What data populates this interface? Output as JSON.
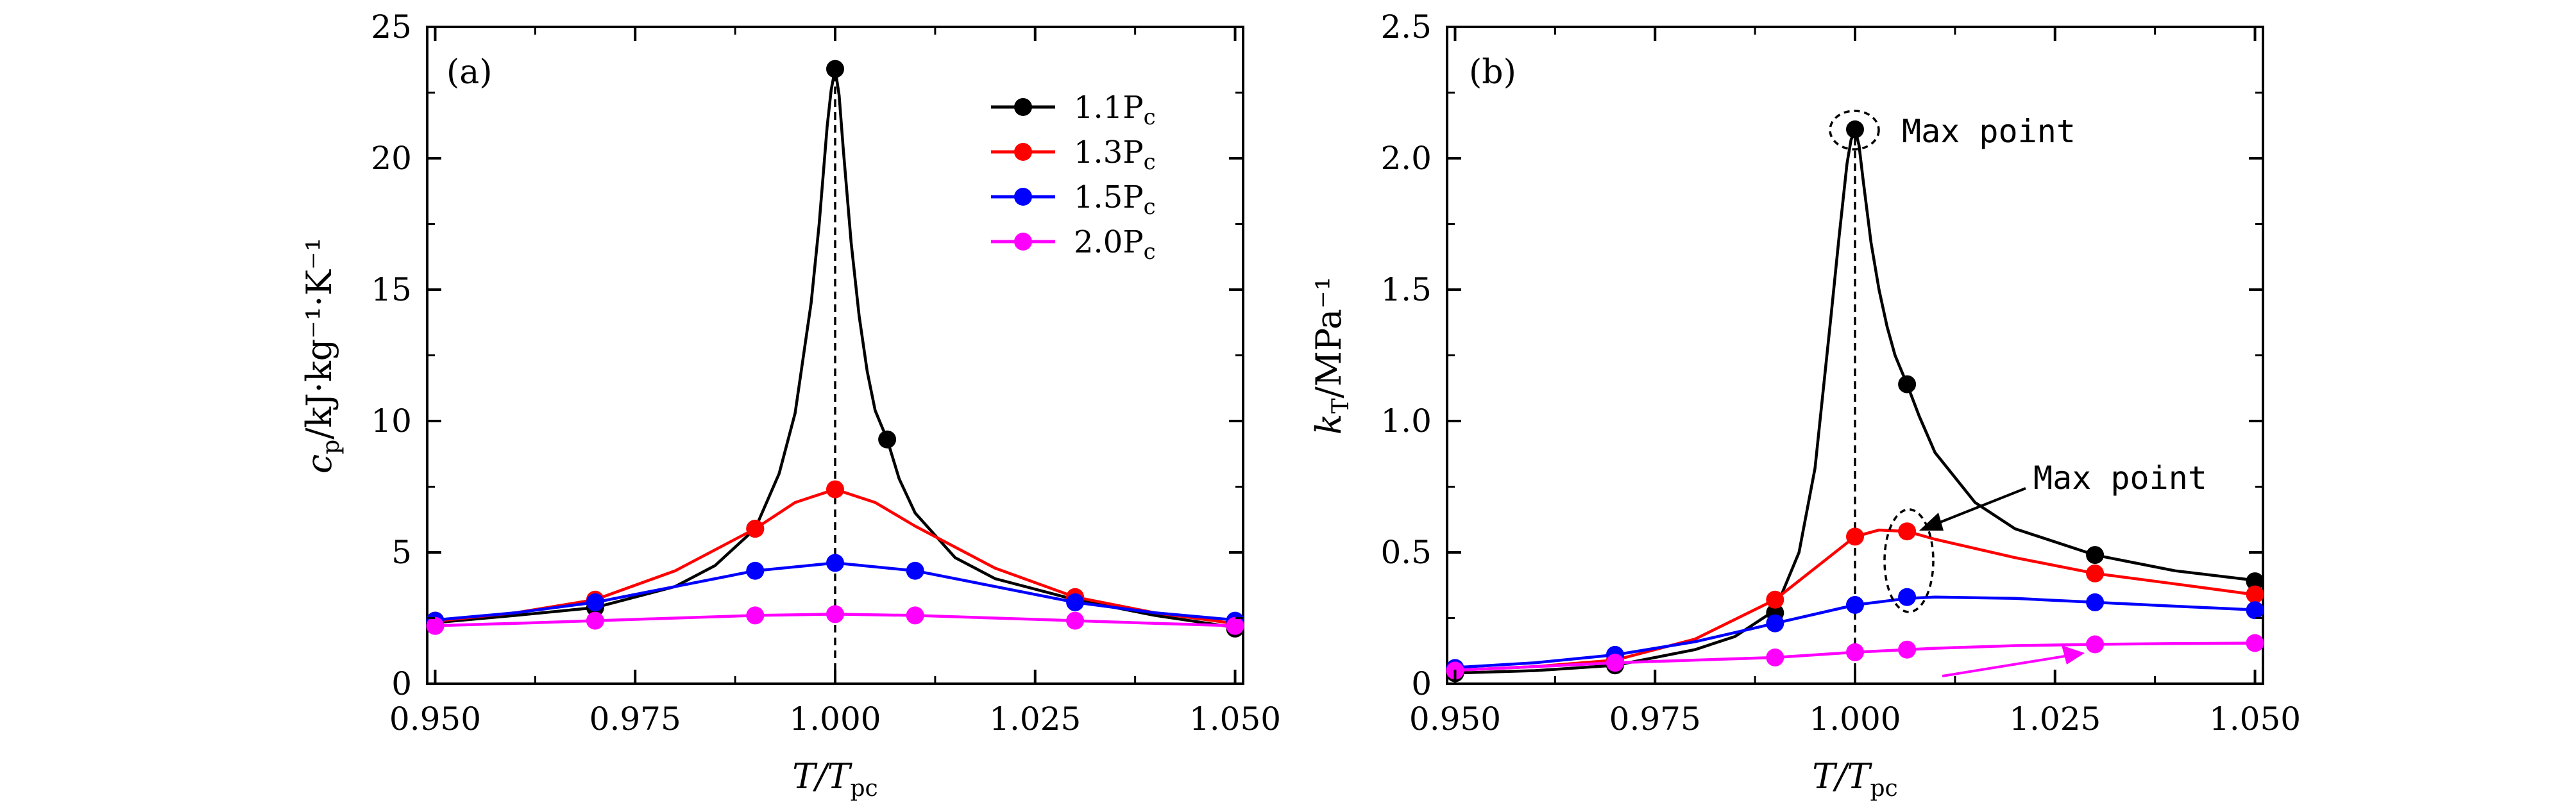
{
  "colors": {
    "black": "#000000",
    "red": "#ff0000",
    "blue": "#0000ff",
    "magenta": "#ff00ff"
  },
  "chart_data": [
    {
      "type": "line",
      "panel_label": "(a)",
      "xlabel": "T/T",
      "xlabel_sub": "pc",
      "ylabel": "c",
      "ylabel_sub": "p",
      "ylabel_unit": "/kJ·kg⁻¹·K⁻¹",
      "xlim": [
        0.949,
        1.051
      ],
      "ylim": [
        0,
        25
      ],
      "xticks": [
        0.95,
        0.975,
        1.0,
        1.025,
        1.05
      ],
      "xtick_labels": [
        "0.950",
        "0.975",
        "1.000",
        "1.025",
        "1.050"
      ],
      "yticks": [
        0,
        5,
        10,
        15,
        20,
        25
      ],
      "ytick_labels": [
        "0",
        "5",
        "10",
        "15",
        "20",
        "25"
      ],
      "grid": false,
      "legend_position": "top-right",
      "vline_x": 1.0,
      "series": [
        {
          "name": "1.1P",
          "name_sub": "c",
          "color": "#000000",
          "markers_x": [
            0.95,
            0.97,
            0.99,
            1.0,
            1.0065,
            1.03,
            1.05
          ],
          "markers_y": [
            2.4,
            2.9,
            5.9,
            23.4,
            9.3,
            3.2,
            2.1
          ],
          "curve_x": [
            0.949,
            0.96,
            0.97,
            0.98,
            0.985,
            0.99,
            0.993,
            0.995,
            0.997,
            0.998,
            0.999,
            0.9995,
            1.0,
            1.0005,
            1.001,
            1.002,
            1.003,
            1.004,
            1.005,
            1.0065,
            1.008,
            1.01,
            1.015,
            1.02,
            1.03,
            1.04,
            1.051
          ],
          "curve_y": [
            2.3,
            2.6,
            2.9,
            3.7,
            4.5,
            5.9,
            8.0,
            10.3,
            14.5,
            17.5,
            21.2,
            22.6,
            23.4,
            22.4,
            20.4,
            16.8,
            14.0,
            11.9,
            10.4,
            9.3,
            7.8,
            6.5,
            4.8,
            4.0,
            3.2,
            2.6,
            2.1
          ]
        },
        {
          "name": "1.3P",
          "name_sub": "c",
          "color": "#ff0000",
          "markers_x": [
            0.95,
            0.97,
            0.99,
            1.0,
            1.03,
            1.05
          ],
          "markers_y": [
            2.4,
            3.2,
            5.9,
            7.4,
            3.3,
            2.3
          ],
          "curve_x": [
            0.949,
            0.96,
            0.97,
            0.98,
            0.99,
            0.995,
            1.0,
            1.005,
            1.01,
            1.02,
            1.03,
            1.04,
            1.051
          ],
          "curve_y": [
            2.35,
            2.7,
            3.2,
            4.3,
            5.9,
            6.9,
            7.4,
            6.9,
            6.0,
            4.4,
            3.3,
            2.7,
            2.25
          ]
        },
        {
          "name": "1.5P",
          "name_sub": "c",
          "color": "#0000ff",
          "markers_x": [
            0.95,
            0.97,
            0.99,
            1.0,
            1.01,
            1.03,
            1.05
          ],
          "markers_y": [
            2.4,
            3.1,
            4.3,
            4.6,
            4.3,
            3.1,
            2.4
          ],
          "curve_x": [
            0.949,
            0.96,
            0.97,
            0.98,
            0.99,
            1.0,
            1.01,
            1.02,
            1.03,
            1.04,
            1.051
          ],
          "curve_y": [
            2.4,
            2.7,
            3.1,
            3.7,
            4.3,
            4.6,
            4.3,
            3.7,
            3.1,
            2.7,
            2.4
          ]
        },
        {
          "name": "2.0P",
          "name_sub": "c",
          "color": "#ff00ff",
          "markers_x": [
            0.95,
            0.97,
            0.99,
            1.0,
            1.01,
            1.03,
            1.05
          ],
          "markers_y": [
            2.2,
            2.4,
            2.6,
            2.65,
            2.6,
            2.4,
            2.2
          ],
          "curve_x": [
            0.949,
            0.96,
            0.97,
            0.98,
            0.99,
            1.0,
            1.01,
            1.02,
            1.03,
            1.04,
            1.051
          ],
          "curve_y": [
            2.2,
            2.3,
            2.4,
            2.5,
            2.6,
            2.65,
            2.6,
            2.5,
            2.4,
            2.3,
            2.2
          ]
        }
      ]
    },
    {
      "type": "line",
      "panel_label": "(b)",
      "xlabel": "T/T",
      "xlabel_sub": "pc",
      "ylabel": "k",
      "ylabel_sub": "T",
      "ylabel_unit": "/MPa⁻¹",
      "xlim": [
        0.949,
        1.051
      ],
      "ylim": [
        0,
        2.5
      ],
      "xticks": [
        0.95,
        0.975,
        1.0,
        1.025,
        1.05
      ],
      "xtick_labels": [
        "0.950",
        "0.975",
        "1.000",
        "1.025",
        "1.050"
      ],
      "yticks": [
        0,
        0.5,
        1.0,
        1.5,
        2.0,
        2.5
      ],
      "ytick_labels": [
        "0",
        "0.5",
        "1.0",
        "1.5",
        "2.0",
        "2.5"
      ],
      "grid": false,
      "vline_x": 1.0,
      "annotations": [
        {
          "text": "Max point",
          "target": "1.1Pc peak at T/Tpc = 1.000"
        },
        {
          "text": "Max point",
          "target": "1.3Pc / 1.5Pc maxima near T/Tpc = 1.007"
        }
      ],
      "series": [
        {
          "name": "1.1P",
          "name_sub": "c",
          "color": "#000000",
          "markers_x": [
            0.95,
            0.97,
            0.99,
            1.0,
            1.0065,
            1.03,
            1.05
          ],
          "markers_y": [
            0.04,
            0.07,
            0.27,
            2.11,
            1.14,
            0.49,
            0.39
          ],
          "curve_x": [
            0.949,
            0.96,
            0.97,
            0.98,
            0.985,
            0.99,
            0.993,
            0.995,
            0.997,
            0.998,
            0.999,
            0.9995,
            1.0,
            1.0005,
            1.001,
            1.002,
            1.003,
            1.004,
            1.005,
            1.0065,
            1.008,
            1.01,
            1.015,
            1.02,
            1.03,
            1.04,
            1.051
          ],
          "curve_y": [
            0.04,
            0.05,
            0.07,
            0.13,
            0.18,
            0.28,
            0.5,
            0.82,
            1.4,
            1.7,
            1.98,
            2.07,
            2.11,
            2.05,
            1.92,
            1.68,
            1.5,
            1.36,
            1.25,
            1.14,
            1.02,
            0.88,
            0.69,
            0.59,
            0.49,
            0.43,
            0.39
          ]
        },
        {
          "name": "1.3P",
          "name_sub": "c",
          "color": "#ff0000",
          "markers_x": [
            0.95,
            0.97,
            0.99,
            1.0,
            1.0065,
            1.03,
            1.05
          ],
          "markers_y": [
            0.05,
            0.09,
            0.32,
            0.56,
            0.58,
            0.42,
            0.34
          ],
          "curve_x": [
            0.949,
            0.96,
            0.97,
            0.98,
            0.99,
            0.995,
            1.0,
            1.003,
            1.0065,
            1.01,
            1.02,
            1.03,
            1.04,
            1.051
          ],
          "curve_y": [
            0.05,
            0.065,
            0.09,
            0.17,
            0.32,
            0.44,
            0.56,
            0.585,
            0.58,
            0.55,
            0.48,
            0.42,
            0.38,
            0.335
          ]
        },
        {
          "name": "1.5P",
          "name_sub": "c",
          "color": "#0000ff",
          "markers_x": [
            0.95,
            0.97,
            0.99,
            1.0,
            1.0065,
            1.03,
            1.05
          ],
          "markers_y": [
            0.06,
            0.11,
            0.23,
            0.3,
            0.33,
            0.31,
            0.28
          ],
          "curve_x": [
            0.949,
            0.96,
            0.97,
            0.98,
            0.99,
            1.0,
            1.0065,
            1.01,
            1.02,
            1.03,
            1.04,
            1.051
          ],
          "curve_y": [
            0.06,
            0.08,
            0.11,
            0.16,
            0.23,
            0.3,
            0.325,
            0.33,
            0.325,
            0.31,
            0.295,
            0.28
          ]
        },
        {
          "name": "2.0P",
          "name_sub": "c",
          "color": "#ff00ff",
          "markers_x": [
            0.95,
            0.97,
            0.99,
            1.0,
            1.0065,
            1.03,
            1.05
          ],
          "markers_y": [
            0.05,
            0.08,
            0.1,
            0.12,
            0.13,
            0.15,
            0.155
          ],
          "curve_x": [
            0.949,
            0.96,
            0.97,
            0.98,
            0.99,
            1.0,
            1.01,
            1.02,
            1.03,
            1.04,
            1.051
          ],
          "curve_y": [
            0.05,
            0.065,
            0.08,
            0.09,
            0.1,
            0.12,
            0.135,
            0.145,
            0.15,
            0.153,
            0.155
          ]
        }
      ]
    }
  ]
}
